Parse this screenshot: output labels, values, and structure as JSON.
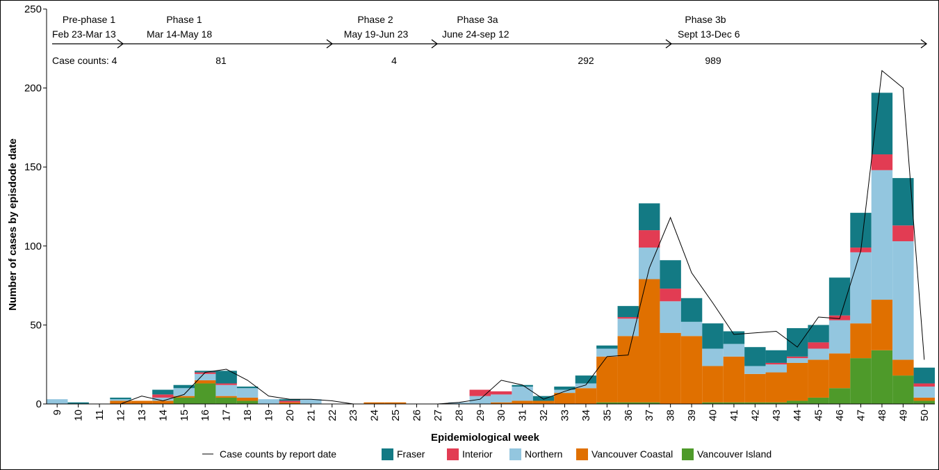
{
  "chart_data": {
    "type": "bar",
    "stacked": true,
    "ylabel": "Number of cases by episdode date",
    "xlabel": "Epidemiological week",
    "ylim": [
      0,
      250
    ],
    "yticks": [
      0,
      50,
      100,
      150,
      200,
      250
    ],
    "categories": [
      "9",
      "10",
      "11",
      "12",
      "13",
      "14",
      "15",
      "16",
      "17",
      "18",
      "19",
      "20",
      "21",
      "22",
      "23",
      "24",
      "25",
      "26",
      "27",
      "28",
      "29",
      "30",
      "31",
      "32",
      "33",
      "34",
      "35",
      "36",
      "37",
      "38",
      "39",
      "40",
      "41",
      "42",
      "43",
      "44",
      "45",
      "46",
      "47",
      "48",
      "49",
      "50"
    ],
    "series": [
      {
        "name": "Vancouver Island",
        "color": "#4e9a2a",
        "values": [
          0,
          0,
          0,
          0,
          0,
          0,
          4,
          13,
          4,
          2,
          0,
          0,
          0,
          0,
          0,
          0,
          0,
          0,
          0,
          0,
          0,
          0,
          0,
          0,
          0,
          0,
          1,
          1,
          1,
          0,
          0,
          1,
          1,
          1,
          1,
          2,
          4,
          10,
          29,
          34,
          18,
          2
        ]
      },
      {
        "name": "Vancouver Coastal",
        "color": "#e07000",
        "values": [
          0,
          0,
          0,
          2,
          2,
          2,
          1,
          2,
          1,
          2,
          0,
          1,
          0,
          0,
          0,
          1,
          1,
          0,
          0,
          0,
          0,
          1,
          2,
          2,
          7,
          10,
          29,
          42,
          78,
          45,
          43,
          23,
          29,
          18,
          19,
          24,
          24,
          22,
          22,
          32,
          10,
          2
        ]
      },
      {
        "name": "Northern",
        "color": "#93c6df",
        "values": [
          3,
          0,
          0,
          1,
          0,
          2,
          5,
          4,
          7,
          6,
          3,
          0,
          3,
          0,
          0,
          0,
          0,
          0,
          0,
          1,
          5,
          5,
          9,
          0,
          2,
          3,
          5,
          11,
          20,
          20,
          9,
          11,
          8,
          5,
          5,
          3,
          7,
          21,
          45,
          82,
          75,
          7
        ]
      },
      {
        "name": "Interior",
        "color": "#e23c53",
        "values": [
          0,
          0,
          0,
          0,
          0,
          2,
          0,
          1,
          1,
          0,
          0,
          1,
          0,
          0,
          0,
          0,
          0,
          0,
          0,
          0,
          4,
          2,
          0,
          0,
          0,
          0,
          0,
          1,
          11,
          8,
          0,
          0,
          0,
          0,
          1,
          1,
          4,
          3,
          3,
          10,
          10,
          2
        ]
      },
      {
        "name": "Fraser",
        "color": "#137a84",
        "values": [
          0,
          1,
          0,
          1,
          0,
          3,
          2,
          1,
          8,
          1,
          0,
          1,
          0,
          0,
          0,
          0,
          0,
          0,
          0,
          0,
          0,
          0,
          1,
          3,
          2,
          5,
          2,
          7,
          17,
          18,
          15,
          16,
          8,
          12,
          8,
          18,
          11,
          24,
          22,
          39,
          30,
          10
        ]
      }
    ],
    "line": {
      "name": "Case counts by report date",
      "color": "#000000",
      "values": [
        0,
        0,
        0,
        0,
        5,
        2,
        6,
        20,
        22,
        15,
        5,
        3,
        3,
        2,
        0,
        0,
        0,
        0,
        0,
        1,
        3,
        15,
        12,
        3,
        8,
        12,
        30,
        31,
        86,
        118,
        83,
        64,
        44,
        45,
        46,
        36,
        55,
        54,
        97,
        211,
        200,
        28
      ]
    },
    "legend": {
      "position": "bottom"
    },
    "phases": [
      {
        "name": "Pre-phase 1",
        "dates": "Feb 23-Mar 13",
        "count": "Case counts: 4"
      },
      {
        "name": "Phase 1",
        "dates": "Mar 14-May 18",
        "count": "81"
      },
      {
        "name": "Phase 2",
        "dates": "May 19-Jun 23",
        "count": "4"
      },
      {
        "name": "Phase 3a",
        "dates": "June 24-sep 12",
        "count": "292"
      },
      {
        "name": "Phase 3b",
        "dates": "Sept 13-Dec 6",
        "count": "989"
      }
    ]
  }
}
